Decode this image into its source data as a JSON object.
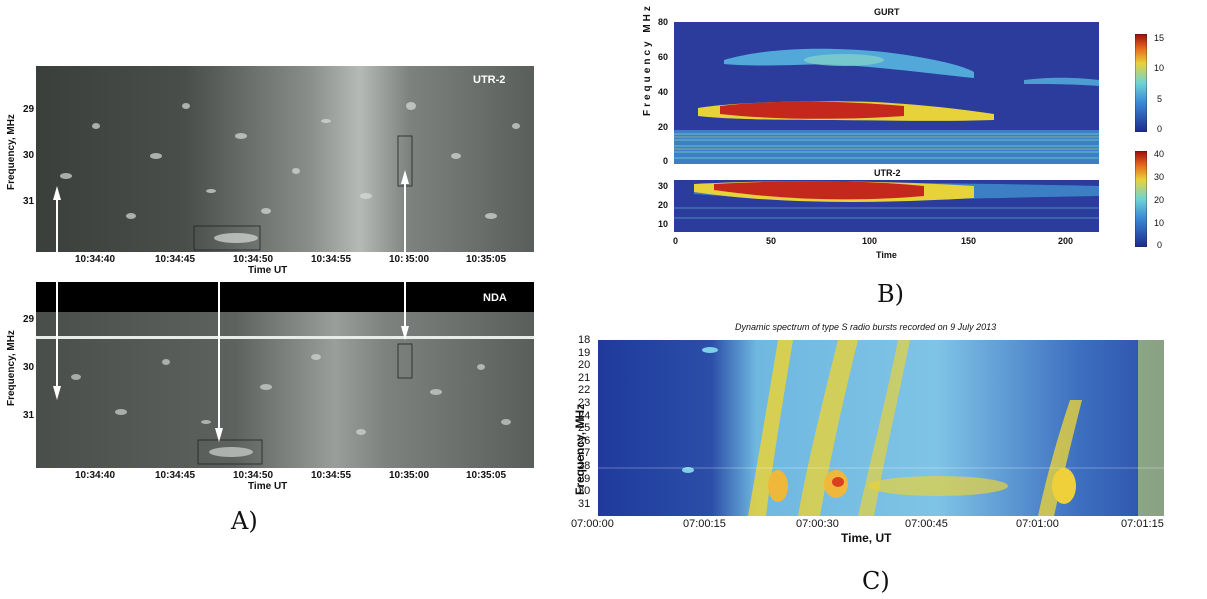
{
  "panel_a": {
    "letter": "A)",
    "top": {
      "label": "UTR-2",
      "y_axis_label": "Frequency, MHz",
      "y_ticks": [
        "29",
        "30",
        "31"
      ],
      "x_ticks": [
        "10:34:40",
        "10:34:45",
        "10:34:50",
        "10:34:55",
        "10:35:00",
        "10:35:05"
      ],
      "x_axis_label": "Time UT"
    },
    "bottom": {
      "label": "NDA",
      "y_axis_label": "Frequency, MHz",
      "y_ticks": [
        "29",
        "30",
        "31"
      ],
      "x_ticks": [
        "10:34:40",
        "10:34:45",
        "10:34:50",
        "10:34:55",
        "10:35:00",
        "10:35:05"
      ],
      "x_axis_label": "Time UT"
    }
  },
  "panel_b": {
    "letter": "B)",
    "top": {
      "title": "GURT",
      "y_axis_label": "Frequency MHz",
      "y_ticks": [
        "80",
        "60",
        "40",
        "20",
        "0"
      ],
      "colorbar_ticks": [
        "15",
        "10",
        "5",
        "0"
      ]
    },
    "bottom": {
      "title": "UTR-2",
      "y_ticks": [
        "30",
        "20",
        "10"
      ],
      "x_ticks": [
        "0",
        "50",
        "100",
        "150",
        "200"
      ],
      "x_axis_label": "Time",
      "colorbar_ticks": [
        "40",
        "30",
        "20",
        "10",
        "0"
      ]
    }
  },
  "panel_c": {
    "letter": "C)",
    "title": "Dynamic spectrum of type S radio bursts recorded on 9 July 2013",
    "y_axis_label": "Frequency, MHz",
    "y_ticks": [
      "18",
      "19",
      "20",
      "21",
      "22",
      "23",
      "24",
      "25",
      "26",
      "27",
      "28",
      "29",
      "30",
      "31"
    ],
    "x_ticks": [
      "07:00:00",
      "07:00:15",
      "07:00:30",
      "07:00:45",
      "07:01:00",
      "07:01:15"
    ],
    "x_axis_label": "Time, UT"
  }
}
